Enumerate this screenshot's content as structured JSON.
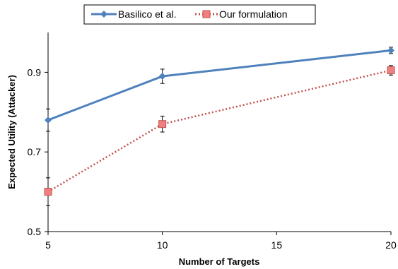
{
  "chart_data": {
    "type": "line",
    "xlabel": "Number of Targets",
    "ylabel": "Expected Utility (Attacker)",
    "x": [
      5,
      10,
      20
    ],
    "xlim": [
      5,
      20
    ],
    "xticks": [
      "5",
      "10",
      "15",
      "20"
    ],
    "ylim": [
      0.5,
      1.0
    ],
    "yticks": [
      "0.5",
      "0.7",
      "0.9"
    ],
    "grid": false,
    "legend_position": "top",
    "series": [
      {
        "name": "Basilico et al.",
        "color": "#4F81BD",
        "line_style": "solid",
        "marker": "diamond",
        "values": [
          0.78,
          0.89,
          0.955
        ],
        "error": [
          0.028,
          0.018,
          0.008
        ]
      },
      {
        "name": "Our formulation",
        "color": "#C0504D",
        "line_style": "dotted",
        "marker": "square",
        "values": [
          0.6,
          0.77,
          0.905
        ],
        "error": [
          0.035,
          0.02,
          0.012
        ]
      }
    ]
  }
}
